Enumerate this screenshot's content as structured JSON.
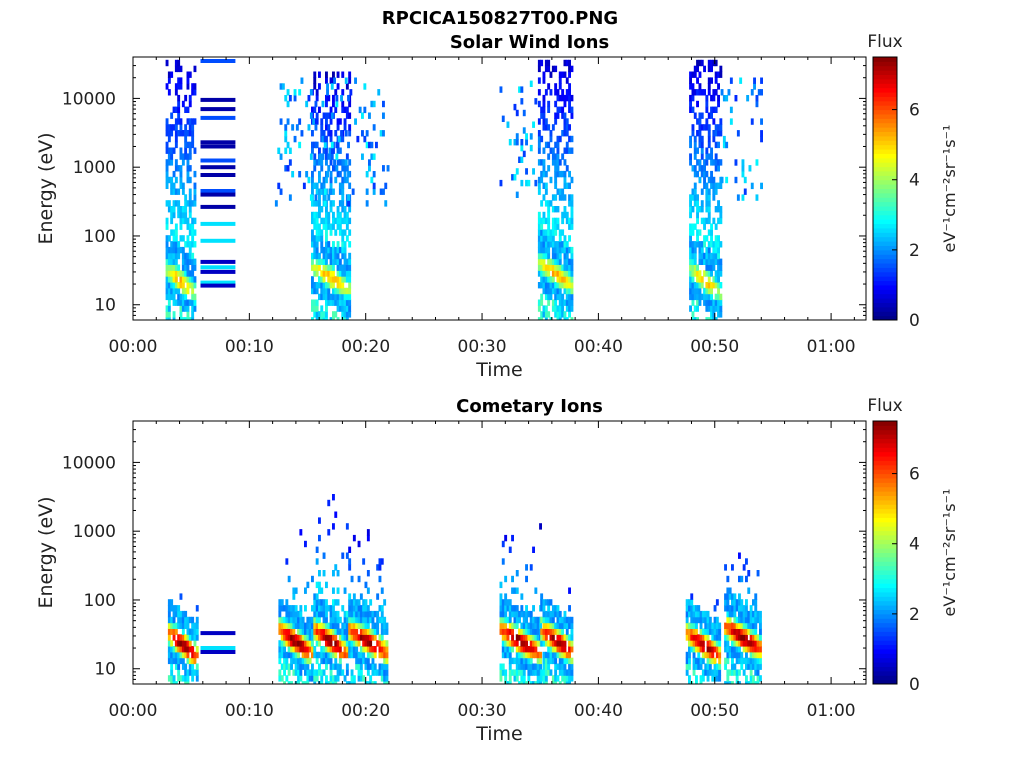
{
  "figure": {
    "title": "RPCICA150827T00.PNG"
  },
  "chart_data": [
    {
      "type": "heatmap",
      "title": "Solar Wind Ions",
      "xlabel": "Time",
      "ylabel": "Energy (eV)",
      "x_ticks": [
        "00:00",
        "00:10",
        "00:20",
        "00:30",
        "00:40",
        "00:50",
        "01:00"
      ],
      "x_range_min": [
        0,
        63
      ],
      "y_scale": "log",
      "y_ticks": [
        "10",
        "100",
        "1000",
        "10000"
      ],
      "y_range_eV": [
        6,
        40000
      ],
      "colorbar": {
        "label": "Flux",
        "unit": "eV⁻¹cm⁻²sr⁻¹s⁻¹",
        "range": [
          0,
          7.5
        ],
        "ticks": [
          "0",
          "2",
          "4",
          "6"
        ],
        "colormap": "jet"
      },
      "bursts": [
        {
          "start_min": 2.8,
          "end_min": 5.3,
          "peak_flux": 5.0,
          "peak_energy_eV": 22,
          "max_energy_eV": 40000
        },
        {
          "start_min": 15.3,
          "end_min": 18.5,
          "peak_flux": 5.0,
          "peak_energy_eV": 25,
          "max_energy_eV": 25000
        },
        {
          "start_min": 34.8,
          "end_min": 37.8,
          "peak_flux": 5.0,
          "peak_energy_eV": 28,
          "max_energy_eV": 40000
        },
        {
          "start_min": 47.8,
          "end_min": 50.5,
          "peak_flux": 4.8,
          "peak_energy_eV": 22,
          "max_energy_eV": 40000
        }
      ],
      "sparse_regions": [
        {
          "start_min": 12.2,
          "end_min": 22.0,
          "min_energy_eV": 300,
          "max_energy_eV": 20000
        },
        {
          "start_min": 31.5,
          "end_min": 34.8,
          "min_energy_eV": 400,
          "max_energy_eV": 20000
        },
        {
          "start_min": 50.5,
          "end_min": 54.0,
          "min_energy_eV": 300,
          "max_energy_eV": 20000
        }
      ],
      "calibration_lines": {
        "start_min": 5.8,
        "end_min": 8.8,
        "energies_eV": [
          35000,
          9500,
          7000,
          5200,
          2300,
          2000,
          1250,
          1000,
          770,
          450,
          400,
          265,
          150,
          85,
          42,
          35,
          30,
          21,
          19
        ]
      }
    },
    {
      "type": "heatmap",
      "title": "Cometary Ions",
      "xlabel": "Time",
      "ylabel": "Energy (eV)",
      "x_ticks": [
        "00:00",
        "00:10",
        "00:20",
        "00:30",
        "00:40",
        "00:50",
        "01:00"
      ],
      "x_range_min": [
        0,
        63
      ],
      "y_scale": "log",
      "y_ticks": [
        "10",
        "100",
        "1000",
        "10000"
      ],
      "y_range_eV": [
        6,
        40000
      ],
      "colorbar": {
        "label": "Flux",
        "unit": "eV⁻¹cm⁻²sr⁻¹s⁻¹",
        "range": [
          0,
          7.5
        ],
        "ticks": [
          "0",
          "2",
          "4",
          "6"
        ],
        "colormap": "jet"
      },
      "bursts": [
        {
          "start_min": 3.0,
          "end_min": 5.5,
          "peak_flux": 7.2,
          "peak_energy_eV": 22,
          "max_energy_eV": 200
        },
        {
          "start_min": 12.5,
          "end_min": 15.3,
          "peak_flux": 7.2,
          "peak_energy_eV": 25,
          "max_energy_eV": 1300
        },
        {
          "start_min": 15.5,
          "end_min": 18.3,
          "peak_flux": 7.2,
          "peak_energy_eV": 25,
          "max_energy_eV": 6500
        },
        {
          "start_min": 18.5,
          "end_min": 21.8,
          "peak_flux": 7.2,
          "peak_energy_eV": 25,
          "max_energy_eV": 1100
        },
        {
          "start_min": 31.5,
          "end_min": 35.0,
          "peak_flux": 7.2,
          "peak_energy_eV": 25,
          "max_energy_eV": 1500
        },
        {
          "start_min": 35.0,
          "end_min": 37.8,
          "peak_flux": 7.2,
          "peak_energy_eV": 25,
          "max_energy_eV": 200
        },
        {
          "start_min": 47.5,
          "end_min": 50.5,
          "peak_flux": 7.0,
          "peak_energy_eV": 22,
          "max_energy_eV": 200
        },
        {
          "start_min": 50.8,
          "end_min": 54.0,
          "peak_flux": 7.2,
          "peak_energy_eV": 28,
          "max_energy_eV": 1100
        }
      ],
      "sparse_regions": [],
      "calibration_lines": {
        "start_min": 5.8,
        "end_min": 8.8,
        "energies_eV": [
          33,
          20,
          17.5
        ]
      }
    }
  ]
}
